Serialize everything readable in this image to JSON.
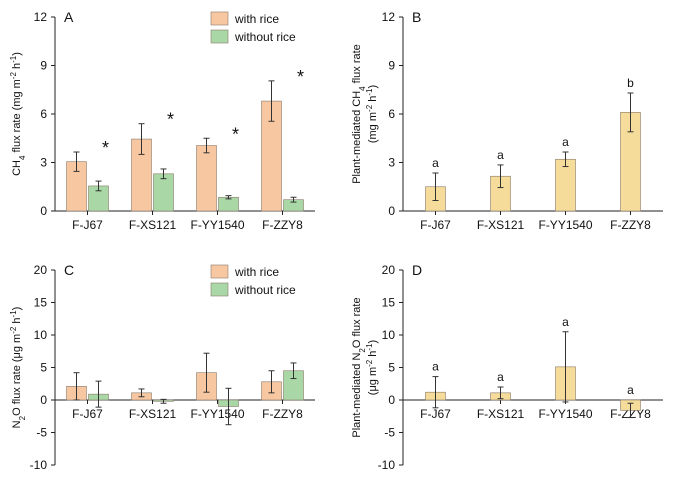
{
  "colors": {
    "with_rice": "#f7c7a1",
    "without_rice": "#a9d8a6",
    "plant": "#f5dc9a",
    "axis": "#222222",
    "bar_edge": "#8a7a6a"
  },
  "categories": [
    "F-J67",
    "F-XS121",
    "F-YY1540",
    "F-ZZY8"
  ],
  "chart_data": [
    {
      "panel": "A",
      "type": "bar",
      "ylabel": {
        "main": "CH",
        "sub": "4",
        "mid": " flux rate (mg m",
        "sup1": "-2",
        "mid2": " h",
        "sup2": "-1",
        "end": ")"
      },
      "ylim": [
        0,
        12
      ],
      "ticks": [
        0,
        3,
        6,
        9,
        12
      ],
      "categories": [
        "F-J67",
        "F-XS121",
        "F-YY1540",
        "F-ZZY8"
      ],
      "series": [
        {
          "name": "with rice",
          "values": [
            3.05,
            4.45,
            4.05,
            6.8
          ],
          "errors": [
            0.6,
            0.95,
            0.45,
            1.25
          ]
        },
        {
          "name": "without rice",
          "values": [
            1.55,
            2.3,
            0.85,
            0.7
          ],
          "errors": [
            0.3,
            0.3,
            0.1,
            0.15
          ]
        }
      ],
      "annotations": [
        "*",
        "*",
        "*",
        "*"
      ],
      "legend": [
        "with rice",
        "without rice"
      ],
      "legend_position": "top-right"
    },
    {
      "panel": "B",
      "type": "bar",
      "ylabel_line1": "Plant-mediated CH",
      "ylabel_line1_sub": "4",
      "ylabel_line1_end": " flux rate",
      "ylabel_line2": {
        "main": "(mg m",
        "sup1": "-2",
        "mid": " h",
        "sup2": "-1",
        "end": ")"
      },
      "ylim": [
        0,
        12
      ],
      "ticks": [
        0,
        3,
        6,
        9,
        12
      ],
      "categories": [
        "F-J67",
        "F-XS121",
        "F-YY1540",
        "F-ZZY8"
      ],
      "series": [
        {
          "name": "plant-mediated",
          "values": [
            1.5,
            2.15,
            3.2,
            6.1
          ],
          "errors": [
            0.85,
            0.7,
            0.45,
            1.2
          ]
        }
      ],
      "annotations": [
        "a",
        "a",
        "a",
        "b"
      ]
    },
    {
      "panel": "C",
      "type": "bar",
      "ylabel": {
        "main": "N",
        "sub": "2",
        "mid": "O flux rate (μg m",
        "sup1": "-2",
        "mid2": " h",
        "sup2": "-1",
        "end": ")"
      },
      "ylim": [
        -10,
        20
      ],
      "ticks": [
        -10,
        -5,
        0,
        5,
        10,
        15,
        20
      ],
      "categories": [
        "F-J67",
        "F-XS121",
        "F-YY1540",
        "F-ZZY8"
      ],
      "series": [
        {
          "name": "with rice",
          "values": [
            2.1,
            1.1,
            4.2,
            2.8
          ],
          "errors": [
            2.1,
            0.6,
            3.0,
            1.7
          ]
        },
        {
          "name": "without rice",
          "values": [
            0.9,
            -0.2,
            -1.0,
            4.5
          ],
          "errors": [
            2.0,
            0.3,
            2.8,
            1.2
          ]
        }
      ],
      "legend": [
        "with rice",
        "without rice"
      ],
      "legend_position": "top-right"
    },
    {
      "panel": "D",
      "type": "bar",
      "ylabel_line1": "Plant-mediated N",
      "ylabel_line1_sub": "2",
      "ylabel_line1_end": "O flux rate",
      "ylabel_line2": {
        "main": "(μg m",
        "sup1": "-2",
        "mid": " h",
        "sup2": "-1",
        "end": ")"
      },
      "ylim": [
        -10,
        20
      ],
      "ticks": [
        -10,
        -5,
        0,
        5,
        10,
        15,
        20
      ],
      "categories": [
        "F-J67",
        "F-XS121",
        "F-YY1540",
        "F-ZZY8"
      ],
      "series": [
        {
          "name": "plant-mediated",
          "values": [
            1.2,
            1.1,
            5.1,
            -1.6
          ],
          "errors": [
            2.4,
            0.9,
            5.4,
            1.1
          ]
        }
      ],
      "annotations": [
        "a",
        "a",
        "a",
        "a"
      ]
    }
  ]
}
